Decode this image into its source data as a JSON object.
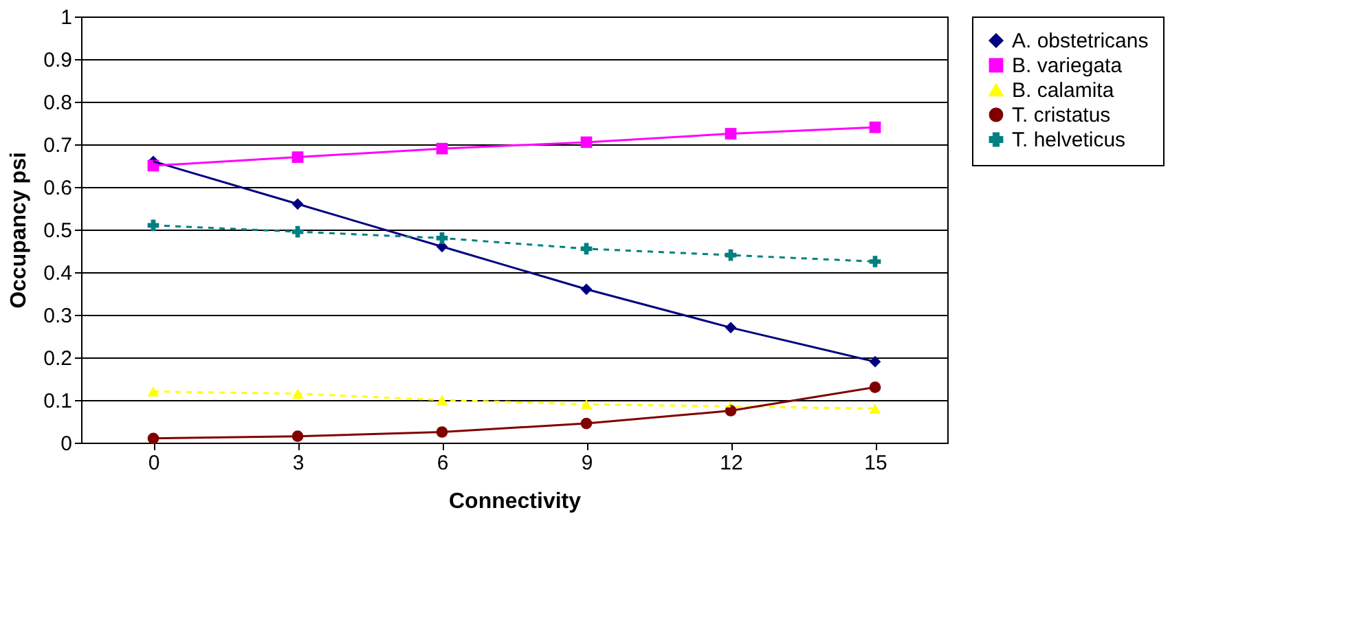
{
  "chart_data": {
    "type": "line",
    "xlabel": "Connectivity",
    "ylabel": "Occupancy psi",
    "categories": [
      "0",
      "3",
      "6",
      "9",
      "12",
      "15"
    ],
    "ylim": [
      0,
      1
    ],
    "yticks": [
      0,
      0.1,
      0.2,
      0.3,
      0.4,
      0.5,
      0.6,
      0.7,
      0.8,
      0.9,
      1
    ],
    "grid": "y",
    "legend": "right",
    "series": [
      {
        "name": "A. obstetricans",
        "color": "#000080",
        "marker": "diamond",
        "line_style": "solid",
        "values": [
          0.66,
          0.56,
          0.46,
          0.36,
          0.27,
          0.19
        ]
      },
      {
        "name": "B. variegata",
        "color": "#ff00ff",
        "marker": "square",
        "line_style": "solid",
        "values": [
          0.65,
          0.67,
          0.69,
          0.705,
          0.725,
          0.74
        ]
      },
      {
        "name": "B. calamita",
        "color": "#ffff00",
        "marker": "triangle",
        "line_style": "dashed",
        "values": [
          0.12,
          0.115,
          0.1,
          0.09,
          0.085,
          0.08
        ]
      },
      {
        "name": "T. cristatus",
        "color": "#800000",
        "marker": "circle",
        "line_style": "solid",
        "values": [
          0.01,
          0.015,
          0.025,
          0.045,
          0.075,
          0.13
        ]
      },
      {
        "name": "T. helveticus",
        "color": "#008080",
        "marker": "cross",
        "line_style": "dashed",
        "values": [
          0.51,
          0.495,
          0.48,
          0.455,
          0.44,
          0.425
        ]
      }
    ]
  }
}
